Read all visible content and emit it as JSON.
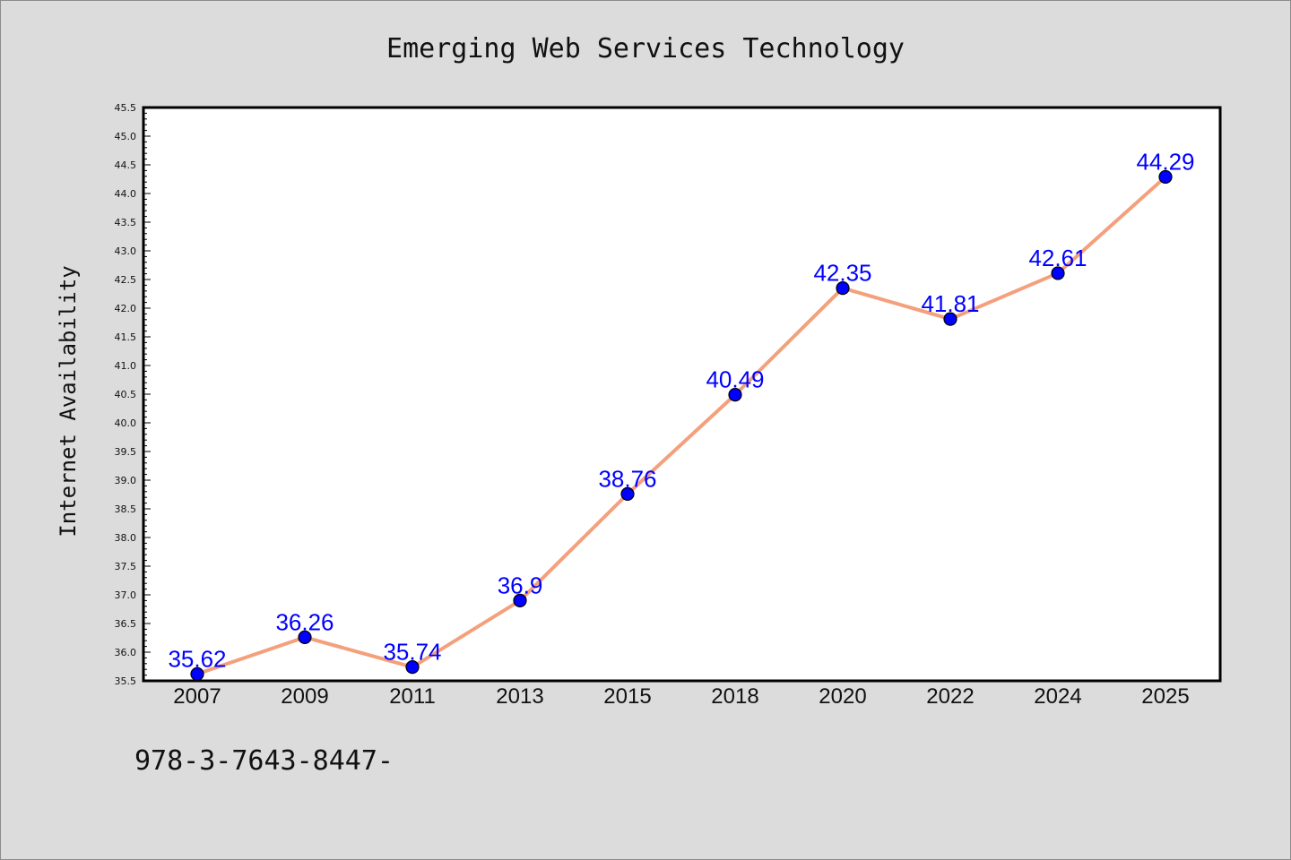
{
  "chart_data": {
    "type": "line",
    "title": "Emerging Web Services Technology",
    "xlabel": "",
    "ylabel": "Internet Availability",
    "categories": [
      "2007",
      "2009",
      "2011",
      "2013",
      "2015",
      "2018",
      "2020",
      "2022",
      "2024",
      "2025"
    ],
    "series": [
      {
        "values": [
          35.62,
          36.26,
          35.74,
          36.9,
          38.76,
          40.49,
          42.35,
          41.81,
          42.61,
          44.29
        ],
        "labels": [
          "35.62",
          "36.26",
          "35.74",
          "36.9",
          "38.76",
          "40.49",
          "42.35",
          "41.81",
          "42.61",
          "44.29"
        ],
        "line_color": "#f4a07c",
        "marker_color": "#0000ff"
      }
    ],
    "ylim": [
      35.5,
      45.5
    ],
    "y_ticks": [
      "35.5",
      "36.0",
      "36.5",
      "37.0",
      "37.5",
      "38.0",
      "38.5",
      "39.0",
      "39.5",
      "40.0",
      "40.5",
      "41.0",
      "41.5",
      "42.0",
      "42.5",
      "43.0",
      "43.5",
      "44.0",
      "44.5",
      "45.0",
      "45.5"
    ],
    "grid": false,
    "legend": "none"
  },
  "footer_text": "978-3-7643-8447-",
  "colors": {
    "background": "#dcdcdc",
    "plot_background": "#ffffff",
    "line": "#f4a07c",
    "marker": "#0000ff",
    "data_label": "#0000ff"
  }
}
